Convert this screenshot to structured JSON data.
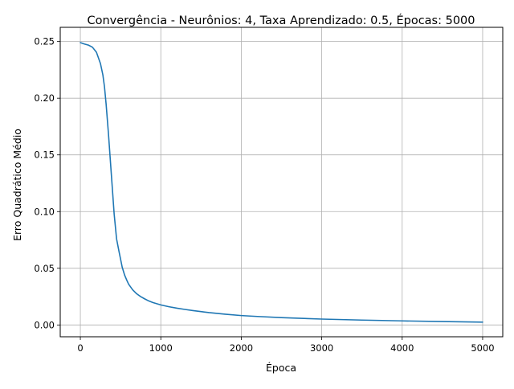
{
  "chart_data": {
    "type": "line",
    "title": "Convergência - Neurônios: 4, Taxa Aprendizado: 0.5, Épocas: 5000",
    "xlabel": "Época",
    "ylabel": "Erro Quadrático Médio",
    "xlim": [
      -250,
      5250
    ],
    "ylim": [
      -0.0104,
      0.2625
    ],
    "x_ticks": [
      0,
      1000,
      2000,
      3000,
      4000,
      5000
    ],
    "x_tick_labels": [
      "0",
      "1000",
      "2000",
      "3000",
      "4000",
      "5000"
    ],
    "y_ticks": [
      0.0,
      0.05,
      0.1,
      0.15,
      0.2,
      0.25
    ],
    "y_tick_labels": [
      "0.00",
      "0.05",
      "0.10",
      "0.15",
      "0.20",
      "0.25"
    ],
    "grid": true,
    "legend": "none",
    "series": [
      {
        "color": "#1f77b4",
        "x": [
          0,
          50,
          100,
          150,
          200,
          250,
          280,
          300,
          320,
          350,
          380,
          400,
          420,
          450,
          480,
          500,
          520,
          550,
          580,
          600,
          650,
          700,
          750,
          800,
          850,
          900,
          1000,
          1100,
          1200,
          1300,
          1400,
          1500,
          1600,
          1800,
          2000,
          2200,
          2500,
          3000,
          3500,
          4000,
          4500,
          5000
        ],
        "y": [
          0.249,
          0.2478,
          0.2468,
          0.245,
          0.2405,
          0.2305,
          0.2205,
          0.21,
          0.195,
          0.168,
          0.138,
          0.118,
          0.098,
          0.076,
          0.065,
          0.058,
          0.051,
          0.044,
          0.039,
          0.036,
          0.031,
          0.0275,
          0.025,
          0.023,
          0.0212,
          0.0198,
          0.0177,
          0.0161,
          0.0148,
          0.0137,
          0.0127,
          0.0118,
          0.0109,
          0.0095,
          0.0083,
          0.0075,
          0.0065,
          0.0052,
          0.0043,
          0.0036,
          0.003,
          0.0025
        ]
      }
    ]
  }
}
